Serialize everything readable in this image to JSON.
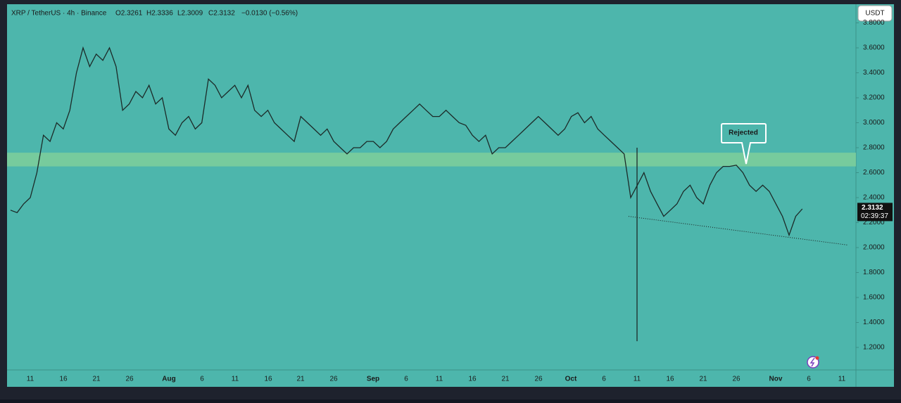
{
  "header": {
    "title": "XRP / TetherUS · 4h · Binance",
    "open": "O2.3261",
    "high": "H2.3336",
    "low": "L2.3009",
    "close": "C2.3132",
    "change": "−0.0130 (−0.56%)"
  },
  "currency_button": "USDT",
  "chart_data": {
    "type": "line",
    "yticks": [
      {
        "value": 3.8,
        "label": "3.8000"
      },
      {
        "value": 3.6,
        "label": "3.6000"
      },
      {
        "value": 3.4,
        "label": "3.4000"
      },
      {
        "value": 3.2,
        "label": "3.2000"
      },
      {
        "value": 3.0,
        "label": "3.0000"
      },
      {
        "value": 2.8,
        "label": "2.8000"
      },
      {
        "value": 2.6,
        "label": "2.6000"
      },
      {
        "value": 2.4,
        "label": "2.4000"
      },
      {
        "value": 2.2,
        "label": "2.2000"
      },
      {
        "value": 2.0,
        "label": "2.0000"
      },
      {
        "value": 1.8,
        "label": "1.8000"
      },
      {
        "value": 1.6,
        "label": "1.6000"
      },
      {
        "value": 1.4,
        "label": "1.4000"
      },
      {
        "value": 1.2,
        "label": "1.2000"
      }
    ],
    "x_labels": [
      "11",
      "16",
      "21",
      "26",
      "Aug",
      "6",
      "11",
      "16",
      "21",
      "26",
      "Sep",
      "6",
      "11",
      "16",
      "21",
      "26",
      "Oct",
      "6",
      "11",
      "16",
      "21",
      "26",
      "Nov",
      "6",
      "11"
    ],
    "closes": [
      2.3,
      2.28,
      2.35,
      2.4,
      2.6,
      2.9,
      2.85,
      3.0,
      2.95,
      3.1,
      3.4,
      3.6,
      3.45,
      3.55,
      3.5,
      3.6,
      3.45,
      3.1,
      3.15,
      3.25,
      3.2,
      3.3,
      3.15,
      3.2,
      2.95,
      2.9,
      3.0,
      3.05,
      2.95,
      3.0,
      3.35,
      3.3,
      3.2,
      3.25,
      3.3,
      3.2,
      3.3,
      3.1,
      3.05,
      3.1,
      3.0,
      2.95,
      2.9,
      2.85,
      3.05,
      3.0,
      2.95,
      2.9,
      2.95,
      2.85,
      2.8,
      2.75,
      2.8,
      2.8,
      2.85,
      2.85,
      2.8,
      2.85,
      2.95,
      3.0,
      3.05,
      3.1,
      3.15,
      3.1,
      3.05,
      3.05,
      3.1,
      3.05,
      3.0,
      2.98,
      2.9,
      2.85,
      2.9,
      2.75,
      2.8,
      2.8,
      2.85,
      2.9,
      2.95,
      3.0,
      3.05,
      3.0,
      2.95,
      2.9,
      2.95,
      3.05,
      3.08,
      3.0,
      3.05,
      2.95,
      2.9,
      2.85,
      2.8,
      2.75,
      2.4,
      2.5,
      2.6,
      2.45,
      2.35,
      2.25,
      2.3,
      2.35,
      2.45,
      2.5,
      2.4,
      2.35,
      2.5,
      2.6,
      2.65,
      2.65,
      2.66,
      2.6,
      2.5,
      2.45,
      2.5,
      2.45,
      2.35,
      2.25,
      2.1,
      2.25,
      2.31
    ],
    "crash_low": 1.25,
    "zone": [
      2.76,
      2.65
    ],
    "trendline": [
      2.25,
      2.02
    ],
    "last_price": {
      "value": 2.3132,
      "label": "2.3132"
    },
    "countdown": "02:39:37",
    "annotation": "Rejected",
    "color": "#1c2a28"
  }
}
